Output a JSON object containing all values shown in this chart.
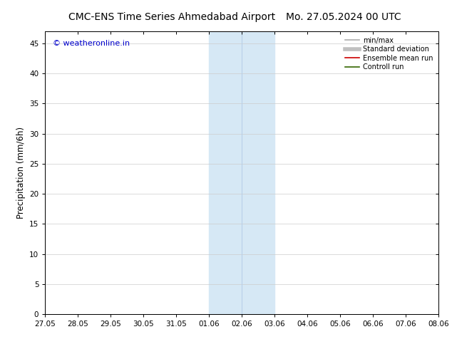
{
  "title_left": "CMC-ENS Time Series Ahmedabad Airport",
  "title_right": "Mo. 27.05.2024 00 UTC",
  "ylabel": "Precipitation (mm/6h)",
  "xlim_dates": [
    "27.05",
    "28.05",
    "29.05",
    "30.05",
    "31.05",
    "01.06",
    "02.06",
    "03.06",
    "04.06",
    "05.06",
    "06.06",
    "07.06",
    "08.06"
  ],
  "xlim_num": [
    0,
    12
  ],
  "ylim": [
    0,
    47
  ],
  "yticks": [
    0,
    5,
    10,
    15,
    20,
    25,
    30,
    35,
    40,
    45
  ],
  "shade_region": [
    5,
    7
  ],
  "shade_color": "#d6e8f5",
  "divider_line_x": 6,
  "divider_line_color": "#b8d0e8",
  "watermark": "© weatheronline.in",
  "watermark_color": "#0000cc",
  "legend_items": [
    {
      "label": "min/max",
      "color": "#aaaaaa",
      "lw": 1.2
    },
    {
      "label": "Standard deviation",
      "color": "#c0c0c0",
      "lw": 4
    },
    {
      "label": "Ensemble mean run",
      "color": "#cc0000",
      "lw": 1.2
    },
    {
      "label": "Controll run",
      "color": "#336600",
      "lw": 1.2
    }
  ],
  "bg_color": "#ffffff",
  "grid_color": "#cccccc",
  "title_fontsize": 10,
  "tick_fontsize": 7.5,
  "ylabel_fontsize": 8.5,
  "watermark_fontsize": 8,
  "legend_fontsize": 7
}
